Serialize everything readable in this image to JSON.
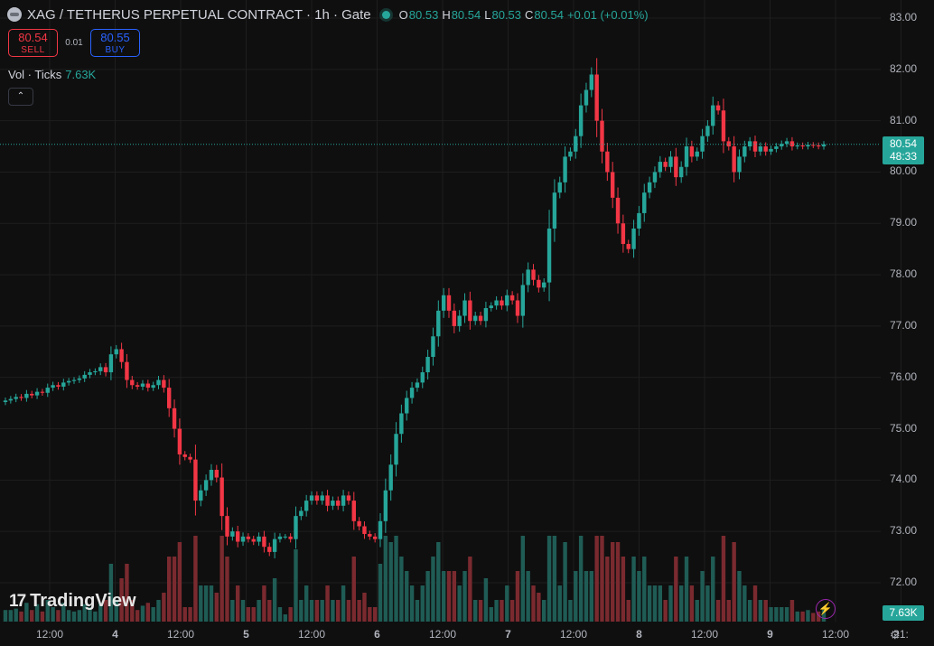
{
  "header": {
    "symbol": "XAG / TETHERUS PERPETUAL CONTRACT · 1h · Gate",
    "o_label": "O",
    "o": "80.53",
    "h_label": "H",
    "h": "80.54",
    "l_label": "L",
    "l": "80.53",
    "c_label": "C",
    "c": "80.54",
    "change": "+0.01 (+0.01%)"
  },
  "trade": {
    "sell_price": "80.54",
    "sell_label": "SELL",
    "spread": "0.01",
    "buy_price": "80.55",
    "buy_label": "BUY"
  },
  "volume": {
    "label": "Vol · Ticks",
    "value": "7.63K"
  },
  "brand": "TradingView",
  "price_tag": {
    "price": "80.54",
    "countdown": "48:33"
  },
  "volume_tag": "7.63K",
  "colors": {
    "up": "#26a69a",
    "down": "#f23645",
    "up_vol": "#1f5c55",
    "down_vol": "#7a2a2f",
    "grid": "#1e1e1e",
    "bg": "#0f0f0f"
  },
  "icons": {
    "collapse": "chevron-up-icon",
    "flash": "lightning-icon",
    "settings": "gear-icon",
    "logo": "tradingview-logo-icon"
  },
  "chart_data": {
    "type": "candlestick",
    "ylim": [
      72,
      83
    ],
    "y_ticks": [
      "83.00",
      "82.00",
      "81.00",
      "80.00",
      "79.00",
      "78.00",
      "77.00",
      "76.00",
      "75.00",
      "74.00",
      "73.00",
      "72.00"
    ],
    "x_ticks": [
      "12:00",
      "4",
      "12:00",
      "5",
      "12:00",
      "6",
      "12:00",
      "7",
      "12:00",
      "8",
      "12:00",
      "9",
      "12:00",
      "21:"
    ],
    "close": [
      75.55,
      75.58,
      75.62,
      75.6,
      75.68,
      75.65,
      75.72,
      75.7,
      75.8,
      75.85,
      75.82,
      75.9,
      75.93,
      75.95,
      75.98,
      76.05,
      76.1,
      76.12,
      76.2,
      76.1,
      76.45,
      76.55,
      76.3,
      75.95,
      75.85,
      75.82,
      75.88,
      75.8,
      75.85,
      75.95,
      75.8,
      75.4,
      75.0,
      74.5,
      74.45,
      74.4,
      73.6,
      73.8,
      74.0,
      74.2,
      74.05,
      73.3,
      72.9,
      73.0,
      72.8,
      72.9,
      72.85,
      72.8,
      72.9,
      72.7,
      72.6,
      72.85,
      72.9,
      72.9,
      72.85,
      73.3,
      73.4,
      73.6,
      73.7,
      73.6,
      73.7,
      73.5,
      73.6,
      73.5,
      73.7,
      73.6,
      73.2,
      73.1,
      72.95,
      72.9,
      72.85,
      73.2,
      73.8,
      74.3,
      74.9,
      75.3,
      75.6,
      75.8,
      75.9,
      76.1,
      76.4,
      76.8,
      77.3,
      77.6,
      77.3,
      77.0,
      77.2,
      77.5,
      77.1,
      77.2,
      77.1,
      77.35,
      77.4,
      77.5,
      77.4,
      77.6,
      77.5,
      77.2,
      77.8,
      78.1,
      77.9,
      77.75,
      77.85,
      78.9,
      79.6,
      79.8,
      80.3,
      80.4,
      80.7,
      81.3,
      81.6,
      81.9,
      81.0,
      80.4,
      80.0,
      79.5,
      79.0,
      78.6,
      78.5,
      78.9,
      79.2,
      79.6,
      79.8,
      80.0,
      80.2,
      80.1,
      80.3,
      79.9,
      80.1,
      80.5,
      80.3,
      80.4,
      80.7,
      80.9,
      81.3,
      81.2,
      80.6,
      80.5,
      80.0,
      80.3,
      80.5,
      80.6,
      80.4,
      80.5,
      80.4,
      80.45,
      80.5,
      80.55,
      80.6,
      80.5,
      80.52,
      80.5,
      80.53,
      80.52,
      80.5,
      80.54
    ]
  }
}
